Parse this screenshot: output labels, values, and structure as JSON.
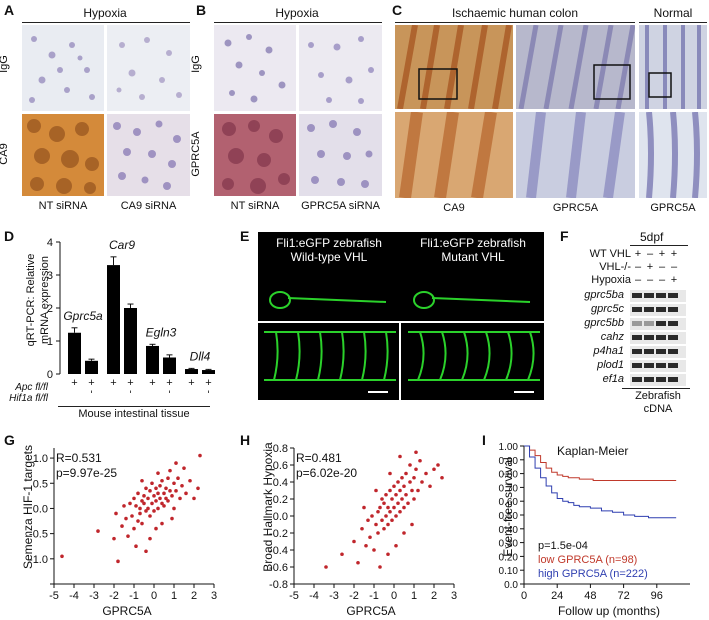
{
  "panels": {
    "A": {
      "label": "A",
      "title": "Hypoxia",
      "row_labels": [
        "IgG",
        "CA9"
      ],
      "col_labels": [
        "NT siRNA",
        "CA9 siRNA"
      ]
    },
    "B": {
      "label": "B",
      "title": "Hypoxia",
      "row_labels": [
        "IgG",
        "GPRC5A"
      ],
      "col_labels": [
        "NT siRNA",
        "GPRC5A siRNA"
      ]
    },
    "C": {
      "label": "C",
      "title": "Ischaemic human colon",
      "title2": "Normal",
      "col_labels": [
        "CA9",
        "GPRC5A",
        "GPRC5A"
      ]
    },
    "D": {
      "label": "D",
      "ylabel_1": "qRT-PCR: Relative",
      "ylabel_2": "mRNA expression",
      "xlabel": "Mouse intestinal tissue",
      "row_labels": [
        "Apc fl/fl",
        "Hif1a fl/fl"
      ]
    },
    "E": {
      "label": "E",
      "left_title_1": "Fli1:eGFP zebrafish",
      "left_title_2": "Wild-type VHL",
      "right_title_1": "Fli1:eGFP zebrafish",
      "right_title_2": "Mutant VHL"
    },
    "F": {
      "label": "F",
      "stage": "5dpf",
      "conditions": [
        "WT VHL",
        "VHL-/-",
        "Hypoxia"
      ],
      "condition_signs": [
        [
          "+",
          "–",
          "+",
          "+"
        ],
        [
          "–",
          "+",
          "–",
          "–"
        ],
        [
          "–",
          "–",
          "–",
          "+"
        ]
      ],
      "genes": [
        "gprc5ba",
        "gprc5c",
        "gprc5bb",
        "cahz",
        "p4ha1",
        "plod1",
        "ef1a"
      ],
      "caption_1": "Zebrafish",
      "caption_2": "cDNA"
    },
    "G": {
      "label": "G",
      "r_text": "R=0.531",
      "p_text": "p=9.97e-25",
      "xlabel": "GPRC5A",
      "ylabel": "Semenza HIF-1 targets"
    },
    "H": {
      "label": "H",
      "r_text": "R=0.481",
      "p_text": "p=6.02e-20",
      "xlabel": "GPRC5A",
      "ylabel": "Broad Hallmark Hypoxia"
    },
    "I": {
      "label": "I",
      "title": "Kaplan-Meier",
      "p_text": "p=1.5e-04",
      "low_text": "low GPRC5A (n=98)",
      "high_text": "high GPRC5A (n=222)",
      "xlabel": "Follow up (months)",
      "ylabel": "Event-free survival",
      "low_color": "#c0392b",
      "high_color": "#2f3fb0"
    }
  },
  "chart_data": [
    {
      "type": "bar",
      "panel": "D",
      "categories": [
        "Gprc5a +/–",
        "Gprc5a +/+",
        "Car9 +/–",
        "Car9 +/+",
        "Egln3 +/–",
        "Egln3 +/+",
        "Dll4 +/–",
        "Dll4 +/+"
      ],
      "group_labels": [
        "Gprc5a",
        "Car9",
        "Egln3",
        "Dll4"
      ],
      "values": [
        1.25,
        0.4,
        3.3,
        2.0,
        0.85,
        0.5,
        0.15,
        0.12
      ],
      "errors": [
        0.15,
        0.05,
        0.25,
        0.12,
        0.05,
        0.08,
        0.02,
        0.02
      ],
      "yticks": [
        0,
        1,
        2,
        3,
        4
      ],
      "ylim": [
        0,
        4
      ]
    },
    {
      "type": "scatter",
      "panel": "G",
      "xlim": [
        -5,
        3
      ],
      "ylim": [
        -1.5,
        1.2
      ],
      "xticks": [
        -5,
        -4,
        -3,
        -2,
        -1,
        0,
        1,
        2,
        3
      ],
      "yticks": [
        -1.5,
        -1.0,
        -0.5,
        0.0,
        0.5,
        1.0
      ],
      "ytick_labels": [
        "",
        "-1.0",
        "-0.5",
        "0.0",
        "0.5",
        "1.0"
      ],
      "color": "#c0262c",
      "points": [
        [
          -4.6,
          -0.95
        ],
        [
          -2.8,
          -0.45
        ],
        [
          -2.0,
          -0.6
        ],
        [
          -1.9,
          -0.1
        ],
        [
          -1.6,
          -0.35
        ],
        [
          -1.5,
          0.05
        ],
        [
          -1.4,
          -0.2
        ],
        [
          -1.3,
          -0.55
        ],
        [
          -1.2,
          0.1
        ],
        [
          -1.1,
          -0.15
        ],
        [
          -1.0,
          0.2
        ],
        [
          -1.0,
          -0.4
        ],
        [
          -0.9,
          0.05
        ],
        [
          -0.8,
          -0.25
        ],
        [
          -0.8,
          0.3
        ],
        [
          -0.7,
          0.0
        ],
        [
          -0.7,
          -0.1
        ],
        [
          -0.6,
          0.15
        ],
        [
          -0.6,
          -0.3
        ],
        [
          -0.5,
          0.25
        ],
        [
          -0.5,
          0.1
        ],
        [
          -0.4,
          -0.05
        ],
        [
          -0.4,
          0.4
        ],
        [
          -0.3,
          0.2
        ],
        [
          -0.3,
          0.0
        ],
        [
          -0.2,
          0.35
        ],
        [
          -0.2,
          -0.15
        ],
        [
          -0.1,
          0.1
        ],
        [
          -0.1,
          0.5
        ],
        [
          0.0,
          0.25
        ],
        [
          0.0,
          -0.05
        ],
        [
          0.1,
          0.4
        ],
        [
          0.1,
          0.15
        ],
        [
          0.2,
          0.3
        ],
        [
          0.2,
          0.0
        ],
        [
          0.3,
          0.45
        ],
        [
          0.3,
          0.2
        ],
        [
          0.4,
          0.1
        ],
        [
          0.4,
          0.55
        ],
        [
          0.5,
          0.3
        ],
        [
          0.5,
          0.05
        ],
        [
          0.6,
          0.4
        ],
        [
          0.6,
          0.2
        ],
        [
          0.7,
          0.6
        ],
        [
          0.7,
          0.15
        ],
        [
          0.8,
          0.35
        ],
        [
          0.8,
          0.75
        ],
        [
          0.9,
          0.25
        ],
        [
          1.0,
          0.5
        ],
        [
          1.0,
          0.0
        ],
        [
          1.1,
          0.35
        ],
        [
          1.2,
          0.6
        ],
        [
          1.3,
          0.2
        ],
        [
          1.4,
          0.45
        ],
        [
          1.5,
          0.8
        ],
        [
          1.6,
          0.3
        ],
        [
          1.8,
          0.55
        ],
        [
          2.0,
          0.2
        ],
        [
          2.2,
          0.4
        ],
        [
          2.3,
          1.05
        ],
        [
          -1.8,
          -1.05
        ],
        [
          -0.4,
          -0.85
        ],
        [
          -0.2,
          -0.6
        ],
        [
          0.1,
          -0.4
        ],
        [
          0.4,
          -0.3
        ],
        [
          0.9,
          -0.2
        ],
        [
          -0.9,
          -0.75
        ],
        [
          1.1,
          0.9
        ],
        [
          0.2,
          0.7
        ],
        [
          -0.6,
          0.55
        ]
      ]
    },
    {
      "type": "scatter",
      "panel": "H",
      "xlim": [
        -5,
        3
      ],
      "ylim": [
        -0.8,
        0.8
      ],
      "xticks": [
        -5,
        -4,
        -3,
        -2,
        -1,
        0,
        1,
        2,
        3
      ],
      "yticks": [
        -0.8,
        -0.6,
        -0.4,
        -0.2,
        0.0,
        0.2,
        0.4,
        0.6,
        0.8
      ],
      "color": "#c0262c",
      "points": [
        [
          -3.4,
          -0.6
        ],
        [
          -2.6,
          -0.45
        ],
        [
          -2.0,
          -0.3
        ],
        [
          -1.8,
          -0.55
        ],
        [
          -1.6,
          -0.15
        ],
        [
          -1.4,
          -0.35
        ],
        [
          -1.3,
          -0.05
        ],
        [
          -1.2,
          -0.25
        ],
        [
          -1.1,
          0.0
        ],
        [
          -1.0,
          -0.4
        ],
        [
          -0.9,
          -0.1
        ],
        [
          -0.8,
          0.05
        ],
        [
          -0.8,
          -0.2
        ],
        [
          -0.7,
          0.1
        ],
        [
          -0.6,
          -0.05
        ],
        [
          -0.6,
          0.2
        ],
        [
          -0.5,
          -0.15
        ],
        [
          -0.5,
          0.15
        ],
        [
          -0.4,
          0.0
        ],
        [
          -0.4,
          0.25
        ],
        [
          -0.3,
          0.1
        ],
        [
          -0.3,
          -0.1
        ],
        [
          -0.2,
          0.3
        ],
        [
          -0.2,
          0.05
        ],
        [
          -0.1,
          0.2
        ],
        [
          -0.1,
          -0.05
        ],
        [
          0.0,
          0.35
        ],
        [
          0.0,
          0.1
        ],
        [
          0.1,
          0.25
        ],
        [
          0.1,
          0.0
        ],
        [
          0.2,
          0.4
        ],
        [
          0.2,
          0.15
        ],
        [
          0.3,
          0.3
        ],
        [
          0.3,
          0.05
        ],
        [
          0.4,
          0.45
        ],
        [
          0.4,
          0.2
        ],
        [
          0.5,
          0.1
        ],
        [
          0.5,
          0.35
        ],
        [
          0.6,
          0.5
        ],
        [
          0.6,
          0.25
        ],
        [
          0.7,
          0.15
        ],
        [
          0.8,
          0.4
        ],
        [
          0.8,
          0.6
        ],
        [
          0.9,
          0.3
        ],
        [
          1.0,
          0.45
        ],
        [
          1.0,
          0.2
        ],
        [
          1.1,
          0.55
        ],
        [
          1.2,
          0.3
        ],
        [
          1.3,
          0.65
        ],
        [
          1.4,
          0.4
        ],
        [
          1.6,
          0.5
        ],
        [
          1.8,
          0.35
        ],
        [
          2.0,
          0.55
        ],
        [
          2.2,
          0.6
        ],
        [
          2.4,
          0.45
        ],
        [
          -0.7,
          -0.6
        ],
        [
          -0.3,
          -0.45
        ],
        [
          0.1,
          -0.35
        ],
        [
          0.5,
          -0.2
        ],
        [
          0.9,
          -0.1
        ],
        [
          -1.5,
          0.1
        ],
        [
          -0.9,
          0.3
        ],
        [
          0.3,
          0.7
        ],
        [
          1.1,
          0.75
        ],
        [
          -0.2,
          0.5
        ]
      ]
    },
    {
      "type": "line",
      "panel": "I",
      "x_label_text": "Follow up (months)",
      "xticks": [
        0,
        24,
        48,
        72,
        96
      ],
      "yticks": [
        0.0,
        0.1,
        0.2,
        0.3,
        0.4,
        0.5,
        0.6,
        0.7,
        0.8,
        0.9,
        1.0
      ],
      "ytick_labels": [
        "0.0",
        "0.10",
        "0.20",
        "0.30",
        "0.40",
        "0.50",
        "0.60",
        "0.70",
        "0.80",
        "0.90",
        "1.00"
      ],
      "xlim": [
        0,
        120
      ],
      "ylim": [
        0,
        1.0
      ],
      "series": [
        {
          "name": "low GPRC5A (n=98)",
          "color": "#c0392b",
          "x": [
            0,
            4,
            8,
            12,
            16,
            20,
            24,
            28,
            32,
            40,
            50,
            60,
            80,
            100,
            110
          ],
          "y": [
            1.0,
            0.97,
            0.93,
            0.88,
            0.84,
            0.81,
            0.79,
            0.78,
            0.77,
            0.76,
            0.75,
            0.75,
            0.75,
            0.75,
            0.75
          ]
        },
        {
          "name": "high GPRC5A (n=222)",
          "color": "#2f3fb0",
          "x": [
            0,
            4,
            8,
            12,
            16,
            20,
            24,
            28,
            32,
            36,
            40,
            48,
            56,
            64,
            72,
            80,
            90,
            100,
            110
          ],
          "y": [
            1.0,
            0.92,
            0.84,
            0.77,
            0.71,
            0.66,
            0.62,
            0.6,
            0.59,
            0.57,
            0.56,
            0.55,
            0.53,
            0.52,
            0.5,
            0.49,
            0.48,
            0.48,
            0.48
          ]
        }
      ]
    }
  ]
}
